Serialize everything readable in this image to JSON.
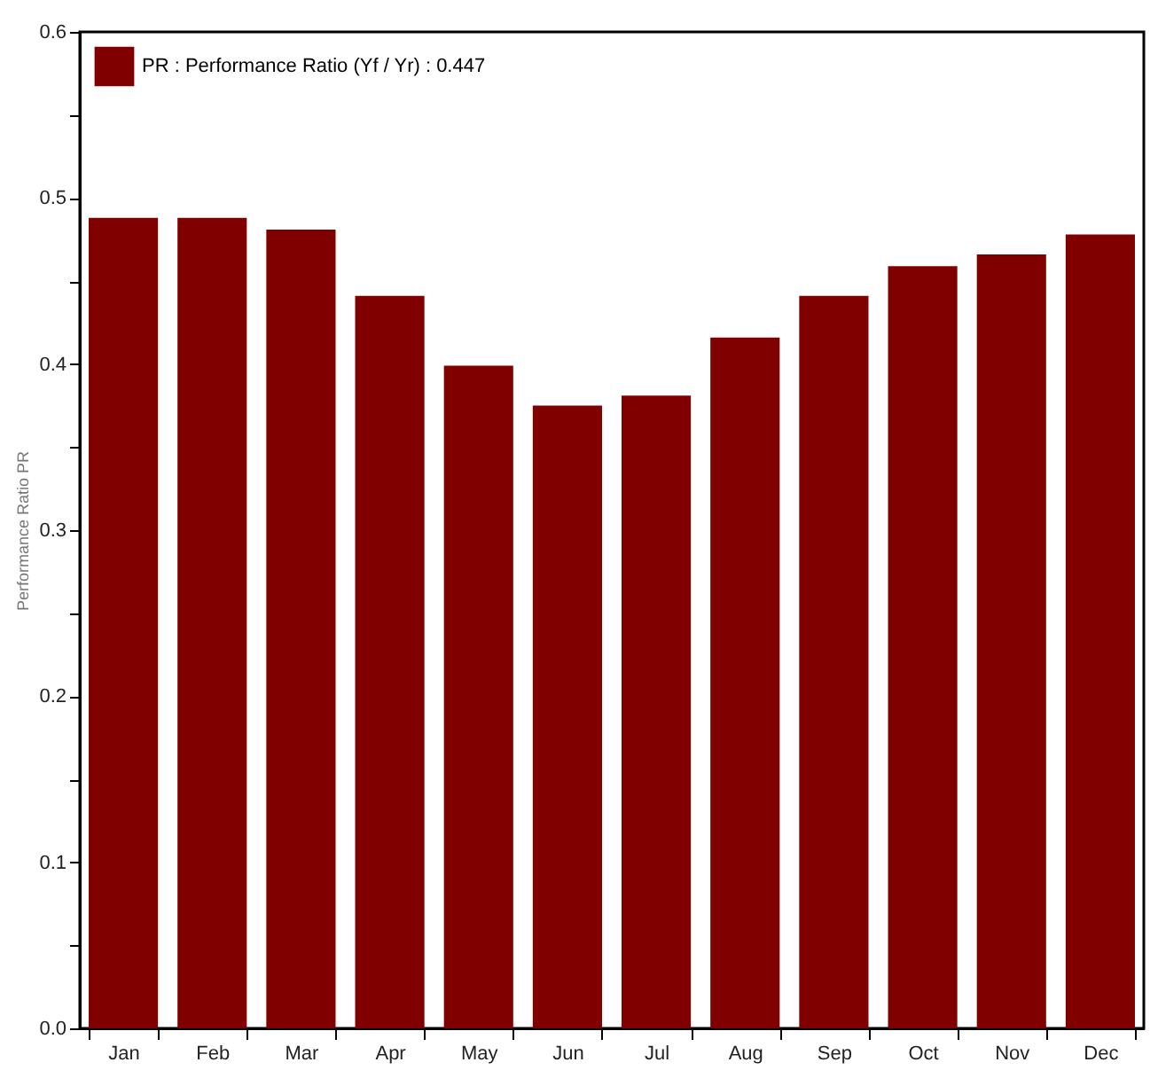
{
  "chart_data": {
    "type": "bar",
    "ylabel": "Performance Ratio PR",
    "categories": [
      "Jan",
      "Feb",
      "Mar",
      "Apr",
      "May",
      "Jun",
      "Jul",
      "Aug",
      "Sep",
      "Oct",
      "Nov",
      "Dec"
    ],
    "series": [
      {
        "name": "PR : Performance Ratio (Yf / Yr) :  0.447",
        "color": "#800000",
        "values": [
          0.488,
          0.488,
          0.481,
          0.441,
          0.399,
          0.375,
          0.381,
          0.416,
          0.441,
          0.459,
          0.466,
          0.478
        ]
      }
    ],
    "ylim": [
      0,
      0.6
    ],
    "yticks": [
      {
        "value": 0,
        "label": "0.0"
      },
      {
        "value": 0.05,
        "label": null
      },
      {
        "value": 0.1,
        "label": "0.1"
      },
      {
        "value": 0.15,
        "label": null
      },
      {
        "value": 0.2,
        "label": "0.2"
      },
      {
        "value": 0.25,
        "label": null
      },
      {
        "value": 0.3,
        "label": "0.3"
      },
      {
        "value": 0.35,
        "label": null
      },
      {
        "value": 0.4,
        "label": "0.4"
      },
      {
        "value": 0.45,
        "label": null
      },
      {
        "value": 0.5,
        "label": "0.5"
      },
      {
        "value": 0.55,
        "label": null
      },
      {
        "value": 0.6,
        "label": "0.6"
      }
    ],
    "legend": "top left",
    "grid": false
  }
}
